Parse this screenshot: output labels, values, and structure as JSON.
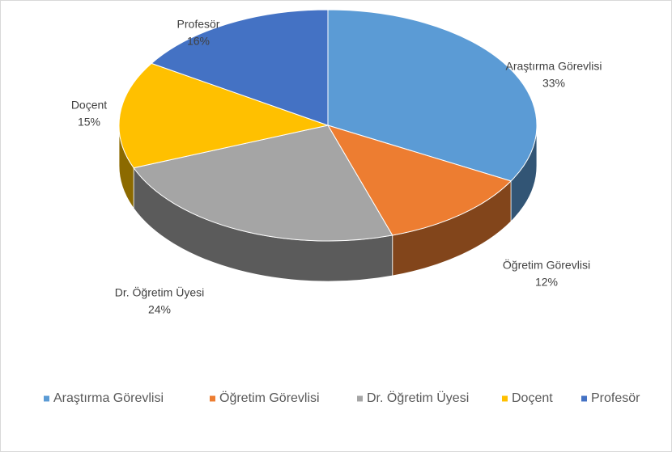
{
  "chart_data": {
    "type": "pie",
    "three_d": true,
    "categories": [
      "Araştırma Görevlisi",
      "Öğretim Görevlisi",
      "Dr. Öğretim Üyesi",
      "Doçent",
      "Profesör"
    ],
    "values": [
      33,
      12,
      24,
      15,
      16
    ],
    "value_labels": [
      "33%",
      "12%",
      "24%",
      "15%",
      "16%"
    ],
    "colors": [
      "#5b9bd5",
      "#ed7d31",
      "#a5a5a5",
      "#ffc000",
      "#4472c4"
    ],
    "legend": "bottom"
  }
}
